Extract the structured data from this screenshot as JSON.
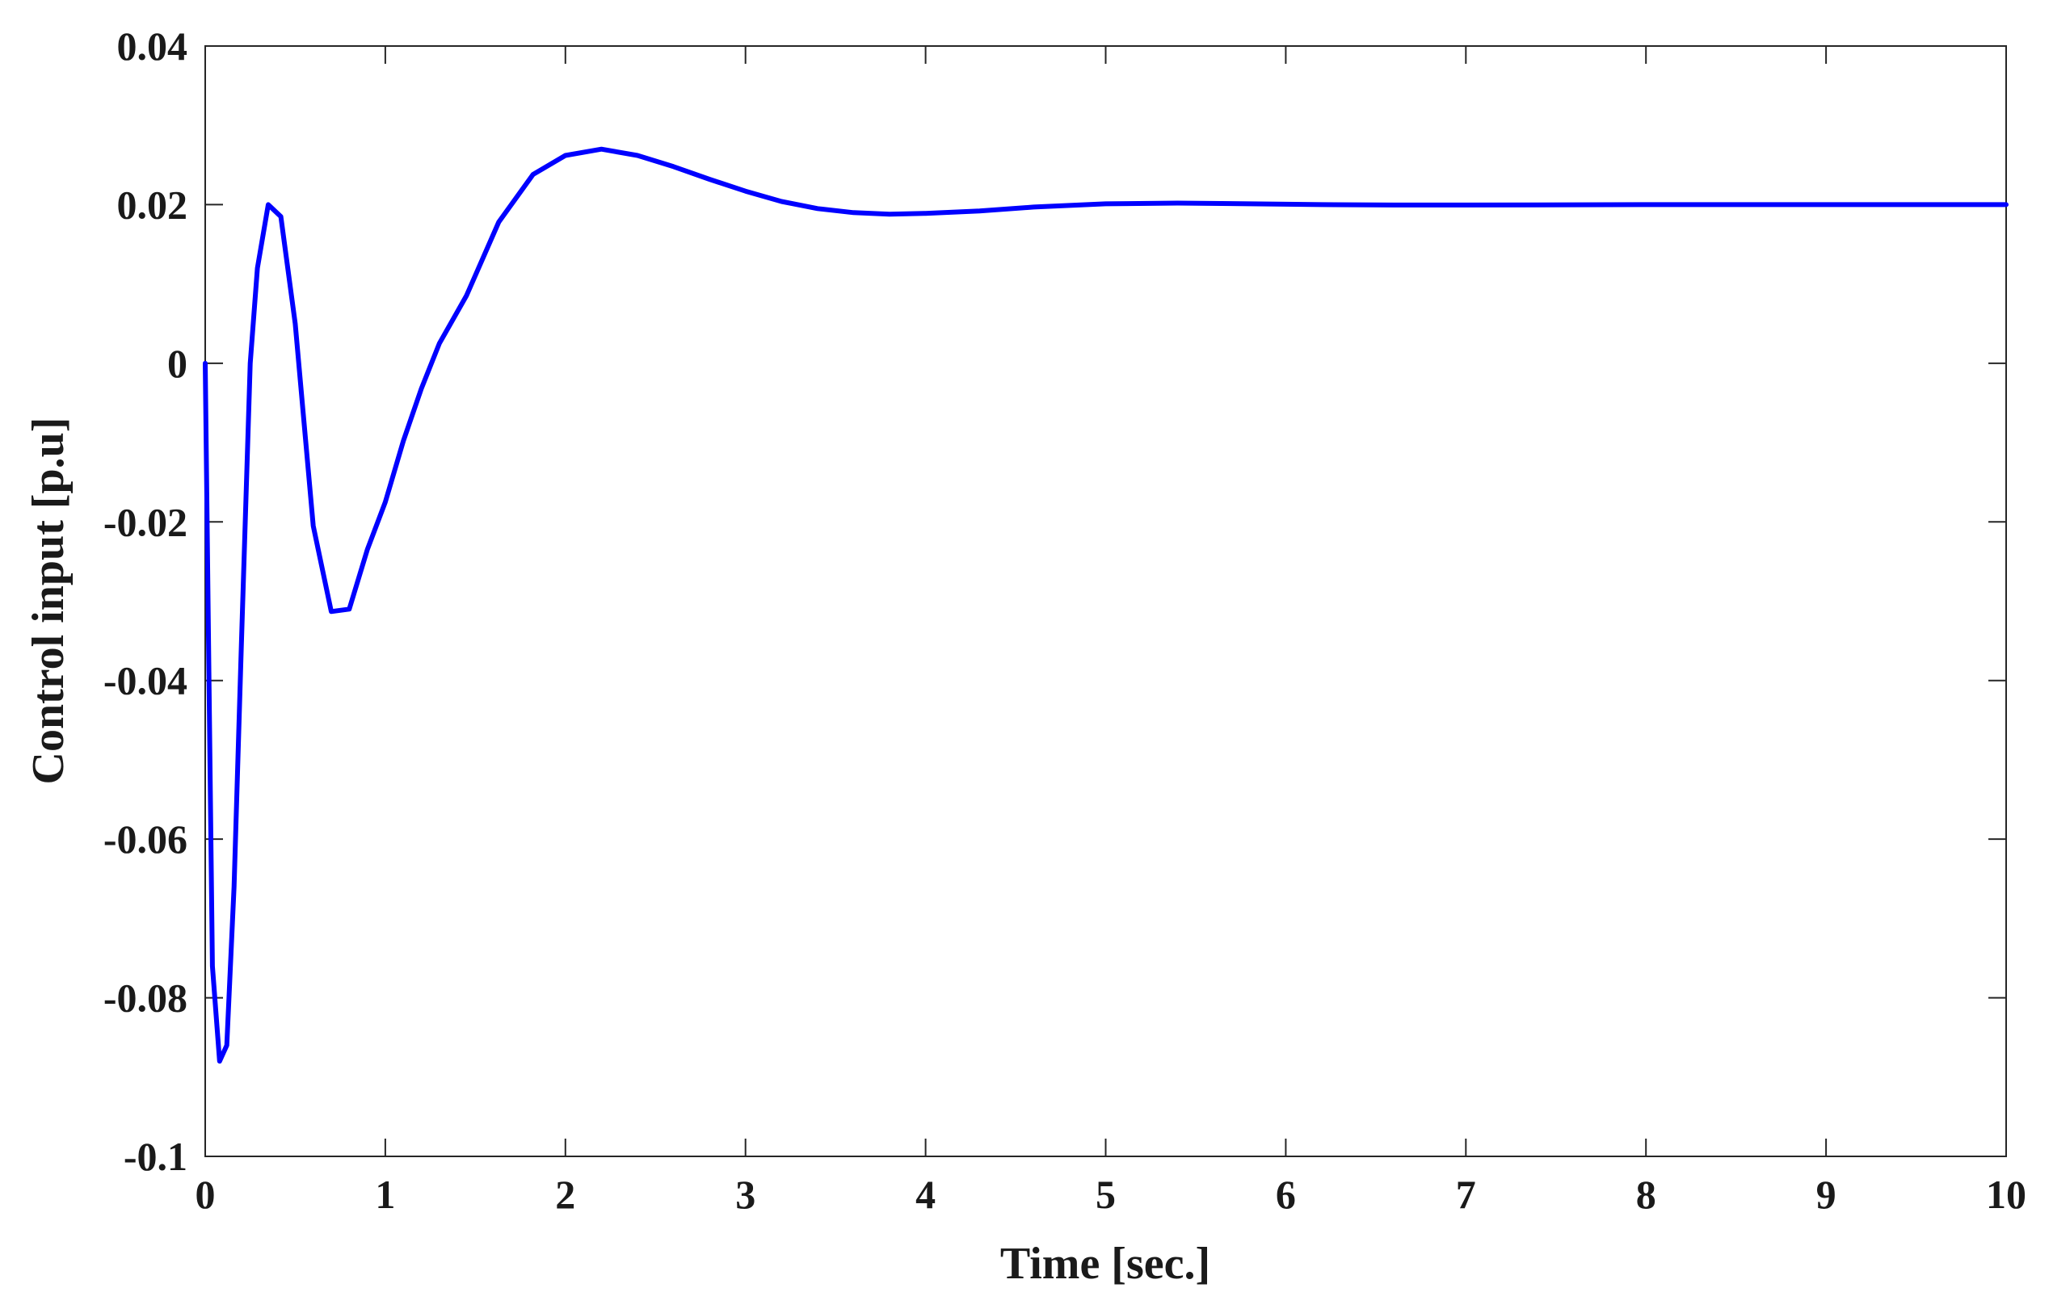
{
  "chart_data": {
    "type": "line",
    "title": "",
    "xlabel": "Time [sec.]",
    "ylabel": "Control input [p.u]",
    "xlim": [
      0,
      10
    ],
    "ylim": [
      -0.1,
      0.04
    ],
    "xticks": [
      0,
      1,
      2,
      3,
      4,
      5,
      6,
      7,
      8,
      9,
      10
    ],
    "xtick_labels": [
      "0",
      "1",
      "2",
      "3",
      "4",
      "5",
      "6",
      "7",
      "8",
      "9",
      "10"
    ],
    "yticks": [
      0.04,
      0.02,
      0,
      -0.02,
      -0.04,
      -0.06,
      -0.08,
      -0.1
    ],
    "ytick_labels": [
      "0.04",
      "0.02",
      "0",
      "-0.02",
      "-0.04",
      "-0.06",
      "-0.08",
      "-0.1"
    ],
    "grid": false,
    "legend": "none",
    "line_color": "#0000ff",
    "series": [
      {
        "x": [
          0,
          0.04,
          0.08,
          0.12,
          0.16,
          0.2,
          0.25,
          0.29,
          0.35,
          0.42,
          0.5,
          0.6,
          0.7,
          0.8,
          0.9,
          1.0,
          1.1,
          1.2,
          1.3,
          1.45,
          1.63,
          1.82,
          2.0,
          2.2,
          2.4,
          2.6,
          2.8,
          3.0,
          3.2,
          3.4,
          3.6,
          3.8,
          4.0,
          4.3,
          4.6,
          5.0,
          5.4,
          5.8,
          6.2,
          6.6,
          7.0,
          8.0,
          9.0,
          10.0
        ],
        "y": [
          0,
          -0.076,
          -0.088,
          -0.086,
          -0.066,
          -0.036,
          0,
          0.012,
          0.02,
          0.0185,
          0.005,
          -0.0205,
          -0.0313,
          -0.031,
          -0.0235,
          -0.0175,
          -0.0098,
          -0.0032,
          0.0025,
          0.0085,
          0.0178,
          0.0238,
          0.0262,
          0.027,
          0.0262,
          0.0248,
          0.0232,
          0.0217,
          0.0204,
          0.0195,
          0.019,
          0.0188,
          0.0189,
          0.0192,
          0.0197,
          0.0201,
          0.0202,
          0.0201,
          0.02,
          0.01995,
          0.01995,
          0.02,
          0.02,
          0.02
        ]
      }
    ]
  }
}
